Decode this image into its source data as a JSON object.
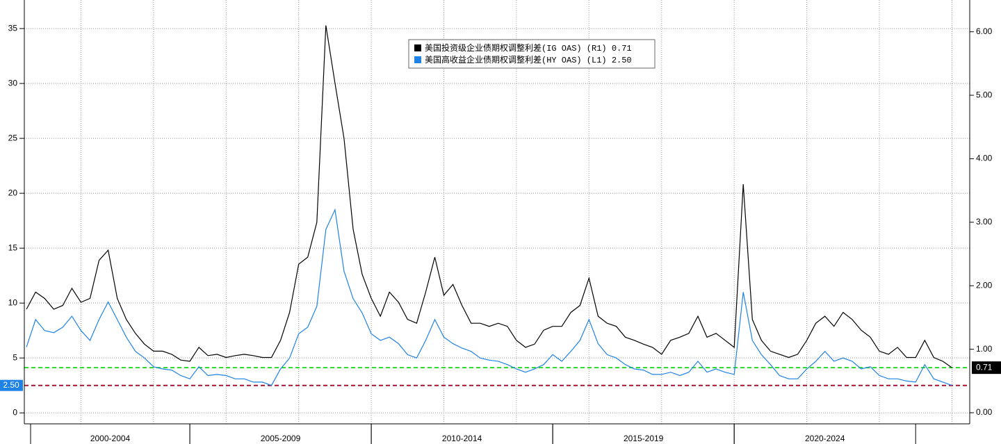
{
  "chart_data": {
    "type": "line",
    "x": [
      2000.5,
      2000.75,
      2001,
      2001.25,
      2001.5,
      2001.75,
      2002,
      2002.25,
      2002.5,
      2002.75,
      2003,
      2003.25,
      2003.5,
      2003.75,
      2004,
      2004.25,
      2004.5,
      2004.75,
      2005,
      2005.25,
      2005.5,
      2005.75,
      2006,
      2006.25,
      2006.5,
      2006.75,
      2007,
      2007.25,
      2007.5,
      2007.75,
      2008,
      2008.25,
      2008.5,
      2008.75,
      2009,
      2009.25,
      2009.5,
      2009.75,
      2010,
      2010.25,
      2010.5,
      2010.75,
      2011,
      2011.25,
      2011.5,
      2011.75,
      2012,
      2012.25,
      2012.5,
      2012.75,
      2013,
      2013.25,
      2013.5,
      2013.75,
      2014,
      2014.25,
      2014.5,
      2014.75,
      2015,
      2015.25,
      2015.5,
      2015.75,
      2016,
      2016.25,
      2016.5,
      2016.75,
      2017,
      2017.25,
      2017.5,
      2017.75,
      2018,
      2018.25,
      2018.5,
      2018.75,
      2019,
      2019.25,
      2019.5,
      2019.75,
      2020,
      2020.25,
      2020.5,
      2020.75,
      2021,
      2021.25,
      2021.5,
      2021.75,
      2022,
      2022.25,
      2022.5,
      2022.75,
      2023,
      2023.25,
      2023.5,
      2023.75,
      2024,
      2024.25,
      2024.5,
      2024.75,
      2025,
      2025.25,
      2025.5,
      2025.75,
      2026
    ],
    "series": [
      {
        "name": "美国投资级企业债期权调整利差(IG OAS) (R1)",
        "color": "#000000",
        "axis": "y2",
        "last_line_color": "#22dd22",
        "values": [
          1.63,
          1.9,
          1.8,
          1.63,
          1.69,
          1.96,
          1.74,
          1.8,
          2.4,
          2.56,
          1.8,
          1.47,
          1.25,
          1.08,
          0.97,
          0.97,
          0.92,
          0.83,
          0.81,
          1.03,
          0.9,
          0.92,
          0.87,
          0.9,
          0.92,
          0.9,
          0.87,
          0.87,
          1.14,
          1.58,
          2.34,
          2.45,
          3.0,
          6.1,
          5.19,
          4.32,
          2.89,
          2.18,
          1.8,
          1.52,
          1.9,
          1.74,
          1.47,
          1.41,
          1.9,
          2.45,
          1.85,
          2.02,
          1.69,
          1.41,
          1.41,
          1.36,
          1.41,
          1.36,
          1.14,
          1.03,
          1.08,
          1.3,
          1.36,
          1.36,
          1.58,
          1.69,
          2.12,
          1.52,
          1.41,
          1.36,
          1.19,
          1.14,
          1.08,
          1.03,
          0.92,
          1.14,
          1.19,
          1.25,
          1.52,
          1.19,
          1.25,
          1.14,
          1.03,
          3.6,
          1.47,
          1.14,
          0.97,
          0.92,
          0.87,
          0.92,
          1.14,
          1.41,
          1.52,
          1.36,
          1.58,
          1.47,
          1.3,
          1.19,
          0.97,
          0.92,
          1.03,
          0.87,
          0.87,
          1.14,
          0.87,
          0.81,
          0.71
        ]
      },
      {
        "name": "美国高收益企业债期权调整利差(HY OAS) (L1)",
        "color": "#1e82e6",
        "axis": "y",
        "last_line_color": "#aa1133",
        "values": [
          6.0,
          8.5,
          7.5,
          7.3,
          7.8,
          8.8,
          7.5,
          6.6,
          8.5,
          10.1,
          8.5,
          6.9,
          5.6,
          5.0,
          4.2,
          4.0,
          3.9,
          3.4,
          3.1,
          4.2,
          3.4,
          3.5,
          3.4,
          3.1,
          3.1,
          2.8,
          2.8,
          2.5,
          4.0,
          5.0,
          7.2,
          7.8,
          9.7,
          16.7,
          18.5,
          12.9,
          10.4,
          9.1,
          7.2,
          6.6,
          6.9,
          6.3,
          5.3,
          5.0,
          6.6,
          8.5,
          6.9,
          6.3,
          5.9,
          5.6,
          5.0,
          4.8,
          4.7,
          4.4,
          4.0,
          3.7,
          4.0,
          4.4,
          5.3,
          4.7,
          5.6,
          6.6,
          8.5,
          6.3,
          5.3,
          5.0,
          4.4,
          4.0,
          3.9,
          3.5,
          3.5,
          3.7,
          3.4,
          3.7,
          4.7,
          3.7,
          4.0,
          3.7,
          3.5,
          11.0,
          6.6,
          5.3,
          4.4,
          3.4,
          3.1,
          3.1,
          4.0,
          4.7,
          5.6,
          4.7,
          5.0,
          4.7,
          4.0,
          4.2,
          3.4,
          3.1,
          3.1,
          2.9,
          2.8,
          4.4,
          3.1,
          2.8,
          2.5
        ],
        "value_labels": [
          null,
          null,
          null,
          null,
          null,
          null,
          null,
          null,
          null,
          null,
          null,
          null,
          null,
          null,
          null,
          null,
          null,
          null,
          null,
          null,
          null,
          null,
          null,
          null,
          null,
          null,
          null,
          null,
          null,
          null,
          null,
          null,
          null,
          null,
          null,
          null,
          null,
          null,
          null,
          null,
          null,
          null,
          null,
          null,
          null,
          null,
          null,
          null,
          null,
          null,
          null,
          null,
          null,
          null,
          null,
          null,
          null,
          null,
          null,
          null,
          null,
          null,
          null,
          null,
          null,
          null,
          null,
          null,
          null,
          null,
          null,
          null,
          null,
          null,
          null,
          null,
          null,
          null,
          null,
          null,
          null,
          null,
          null,
          null,
          null,
          null,
          null,
          null,
          null,
          null,
          null,
          null,
          null,
          null,
          null,
          null,
          null,
          null,
          null,
          null,
          null,
          null,
          "2.50"
        ]
      }
    ],
    "xlim": [
      2000.44,
      2026.49
    ],
    "periods": [
      {
        "label": "2000-2004",
        "from": 2000,
        "to": 2005
      },
      {
        "label": "2005-2009",
        "from": 2005,
        "to": 2010
      },
      {
        "label": "2010-2014",
        "from": 2010,
        "to": 2015
      },
      {
        "label": "2015-2019",
        "from": 2015,
        "to": 2020
      },
      {
        "label": "2020-2024",
        "from": 2020,
        "to": 2025
      }
    ],
    "xgrid": [
      2002,
      2004,
      2006,
      2008,
      2010,
      2012,
      2014,
      2016,
      2018,
      2020,
      2022,
      2024,
      2026
    ],
    "ylim": [
      -1.0,
      37.6
    ],
    "yticks": [
      0,
      5,
      10,
      15,
      20,
      25,
      30,
      35
    ],
    "y2lim": [
      -0.175,
      6.5
    ],
    "y2ticks": [
      {
        "value": 0,
        "label": "0.00"
      },
      {
        "value": 1,
        "label": "1.00"
      },
      {
        "value": 2,
        "label": "2.00"
      },
      {
        "value": 3,
        "label": "3.00"
      },
      {
        "value": 4,
        "label": "4.00"
      },
      {
        "value": 5,
        "label": "5.00"
      },
      {
        "value": 6,
        "label": "6.00"
      }
    ],
    "grid": true
  }
}
